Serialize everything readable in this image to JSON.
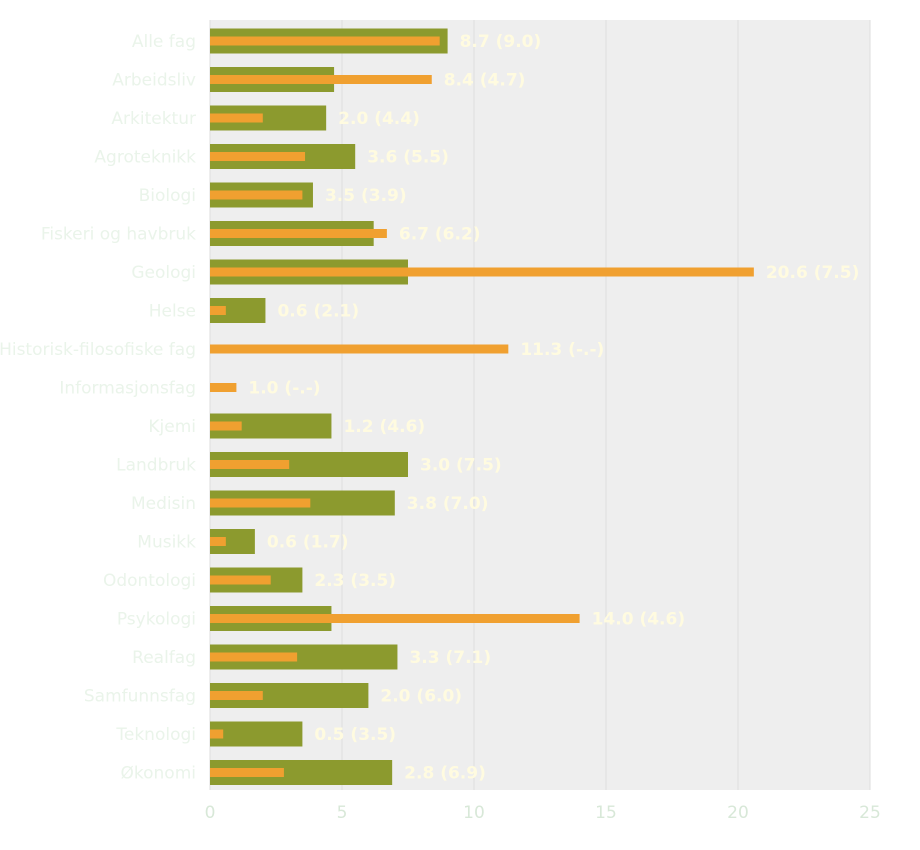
{
  "chart_data": {
    "type": "bar",
    "categories": [
      "Alle fag",
      "Arbeidsliv",
      "Arkitektur",
      "Agroteknikk",
      "Biologi",
      "Fiskeri og havbruk",
      "Geologi",
      "Helse",
      "Historisk-filosofiske fag",
      "Informasjonsfag",
      "Kjemi",
      "Landbruk",
      "Medisin",
      "Musikk",
      "Odontologi",
      "Psykologi",
      "Realfag",
      "Samfunnsfag",
      "Teknologi",
      "Økonomi"
    ],
    "series": [
      {
        "values": [
          9.0,
          4.7,
          4.4,
          5.5,
          3.9,
          6.2,
          7.5,
          2.1,
          null,
          null,
          4.6,
          7.5,
          7.0,
          1.7,
          3.5,
          4.6,
          7.1,
          6.0,
          3.5,
          6.9
        ]
      },
      {
        "values": [
          8.7,
          8.4,
          2.0,
          3.6,
          3.5,
          6.7,
          20.6,
          0.6,
          11.3,
          1.0,
          1.2,
          3.0,
          3.8,
          0.6,
          2.3,
          14.0,
          3.3,
          2.0,
          0.5,
          2.8
        ]
      }
    ],
    "value_labels": [
      "8.7 (9.0)",
      "8.4 (4.7)",
      "2.0 (4.4)",
      "3.6 (5.5)",
      "3.5 (3.9)",
      "6.7 (6.2)",
      "20.6 (7.5)",
      "0.6 (2.1)",
      "11.3 (-.-)",
      "1.0 (-.-)",
      "1.2 (4.6)",
      "3.0 (7.5)",
      "3.8 (7.0)",
      "0.6 (1.7)",
      "2.3 (3.5)",
      "14.0 (4.6)",
      "3.3 (7.1)",
      "2.0 (6.0)",
      "0.5 (3.5)",
      "2.8 (6.9)"
    ],
    "x_ticks": [
      "0",
      "5",
      "10",
      "15",
      "20",
      "25"
    ],
    "xlim": [
      0,
      25
    ],
    "grid": true,
    "title": "",
    "xlabel": "",
    "ylabel": "",
    "colors": {
      "series_wide": "#8c9a2e",
      "series_narrow": "#f0a030",
      "plot_background": "#eeeeee",
      "grid": "#dddddd",
      "value_label": "#fffbe0",
      "category_label": "#eaf4ea",
      "tick_label": "#d8e8d8"
    }
  }
}
